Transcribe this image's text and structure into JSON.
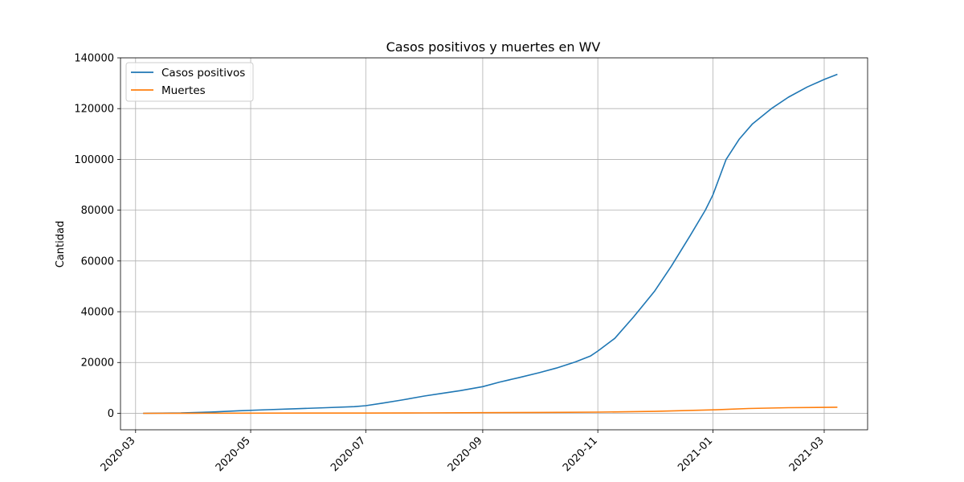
{
  "chart_data": {
    "type": "line",
    "title": "Casos positivos y muertes en WV",
    "xlabel": "",
    "ylabel": "Cantidad",
    "xlim": [
      "2020-02-22",
      "2021-03-24"
    ],
    "ylim": [
      -6500,
      140000
    ],
    "grid": true,
    "legend_position": "top-left",
    "x_ticks": [
      "2020-03-01",
      "2020-05-01",
      "2020-07-01",
      "2020-09-01",
      "2020-11-01",
      "2021-01-01",
      "2021-03-01"
    ],
    "x_tick_labels": [
      "2020-03",
      "2020-05",
      "2020-07",
      "2020-09",
      "2020-11",
      "2021-01",
      "2021-03"
    ],
    "y_ticks": [
      0,
      20000,
      40000,
      60000,
      80000,
      100000,
      120000,
      140000
    ],
    "y_tick_labels": [
      "0",
      "20000",
      "40000",
      "60000",
      "80000",
      "100000",
      "120000",
      "140000"
    ],
    "colors": {
      "casos": "#1f77b4",
      "muertes": "#ff7f0e"
    },
    "series": [
      {
        "name": "Casos positivos",
        "color": "#1f77b4",
        "x": [
          "2020-03-05",
          "2020-03-25",
          "2020-04-10",
          "2020-04-25",
          "2020-05-10",
          "2020-05-25",
          "2020-06-10",
          "2020-06-25",
          "2020-07-01",
          "2020-07-10",
          "2020-07-20",
          "2020-08-01",
          "2020-08-10",
          "2020-08-20",
          "2020-09-01",
          "2020-09-10",
          "2020-09-20",
          "2020-10-01",
          "2020-10-10",
          "2020-10-20",
          "2020-10-28",
          "2020-11-01",
          "2020-11-10",
          "2020-11-20",
          "2020-12-01",
          "2020-12-10",
          "2020-12-20",
          "2020-12-28",
          "2021-01-01",
          "2021-01-08",
          "2021-01-15",
          "2021-01-22",
          "2021-02-01",
          "2021-02-10",
          "2021-02-20",
          "2021-03-01",
          "2021-03-08"
        ],
        "values": [
          0,
          100,
          500,
          1000,
          1400,
          1800,
          2200,
          2600,
          3000,
          4000,
          5200,
          6800,
          7800,
          8900,
          10500,
          12300,
          14000,
          16000,
          17800,
          20200,
          22500,
          24500,
          29500,
          38000,
          48000,
          58000,
          70000,
          80000,
          86000,
          100000,
          108000,
          114000,
          120000,
          124500,
          128500,
          131500,
          133500
        ]
      },
      {
        "name": "Muertes",
        "color": "#ff7f0e",
        "x": [
          "2020-03-05",
          "2020-04-01",
          "2020-05-01",
          "2020-06-01",
          "2020-07-01",
          "2020-08-01",
          "2020-09-01",
          "2020-10-01",
          "2020-11-01",
          "2020-12-01",
          "2021-01-01",
          "2021-01-20",
          "2021-02-10",
          "2021-03-08"
        ],
        "values": [
          0,
          5,
          40,
          80,
          95,
          150,
          230,
          320,
          450,
          750,
          1350,
          1900,
          2200,
          2400
        ]
      }
    ]
  }
}
